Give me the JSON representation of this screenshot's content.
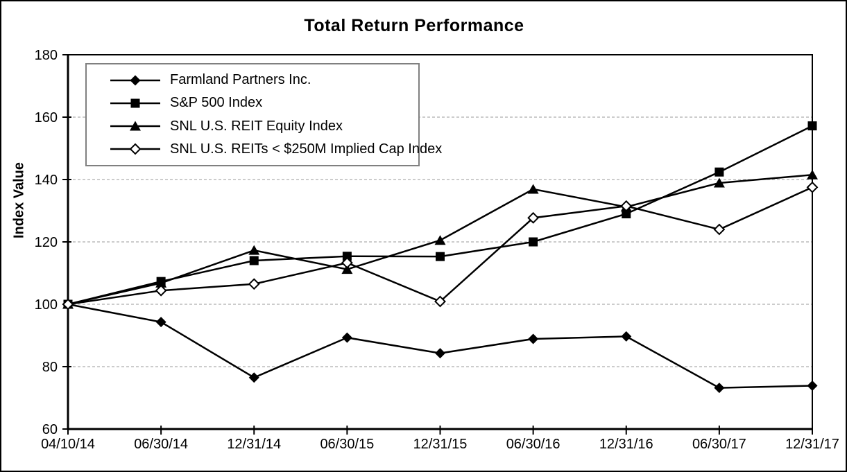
{
  "figure": {
    "background": "#ffffff",
    "outer_border_color": "#000000"
  },
  "chart_data": {
    "type": "line",
    "title": "Total Return Performance",
    "xlabel": "",
    "ylabel": "Index Value",
    "categories": [
      "04/10/14",
      "06/30/14",
      "12/31/14",
      "06/30/15",
      "12/31/15",
      "06/30/16",
      "12/31/16",
      "06/30/17",
      "12/31/17"
    ],
    "ylim": [
      60,
      180
    ],
    "yticks": [
      60,
      80,
      100,
      120,
      140,
      160,
      180
    ],
    "grid": "horizontal-dashed",
    "legend_position": "top-left-inside",
    "series": [
      {
        "name": "Farmland Partners Inc.",
        "marker": "diamond-filled",
        "values": [
          100,
          94.3,
          76.5,
          89.3,
          84.3,
          88.9,
          89.7,
          73.2,
          73.9
        ]
      },
      {
        "name": "S&P 500 Index",
        "marker": "square-filled",
        "values": [
          100,
          107.3,
          114.0,
          115.4,
          115.3,
          120.0,
          129.0,
          142.4,
          157.2
        ]
      },
      {
        "name": "SNL U.S. REIT Equity Index",
        "marker": "triangle-filled",
        "values": [
          100,
          106.8,
          117.3,
          111.2,
          120.5,
          136.9,
          131.2,
          138.9,
          141.5
        ]
      },
      {
        "name": "SNL U.S. REITs < $250M Implied Cap Index",
        "marker": "diamond-open",
        "values": [
          100,
          104.4,
          106.5,
          113.3,
          100.9,
          127.7,
          131.5,
          124.0,
          137.5
        ]
      }
    ],
    "colors": {
      "line": "#000000",
      "grid": "#999999",
      "axis": "#000000",
      "legend_border": "#808080"
    }
  }
}
